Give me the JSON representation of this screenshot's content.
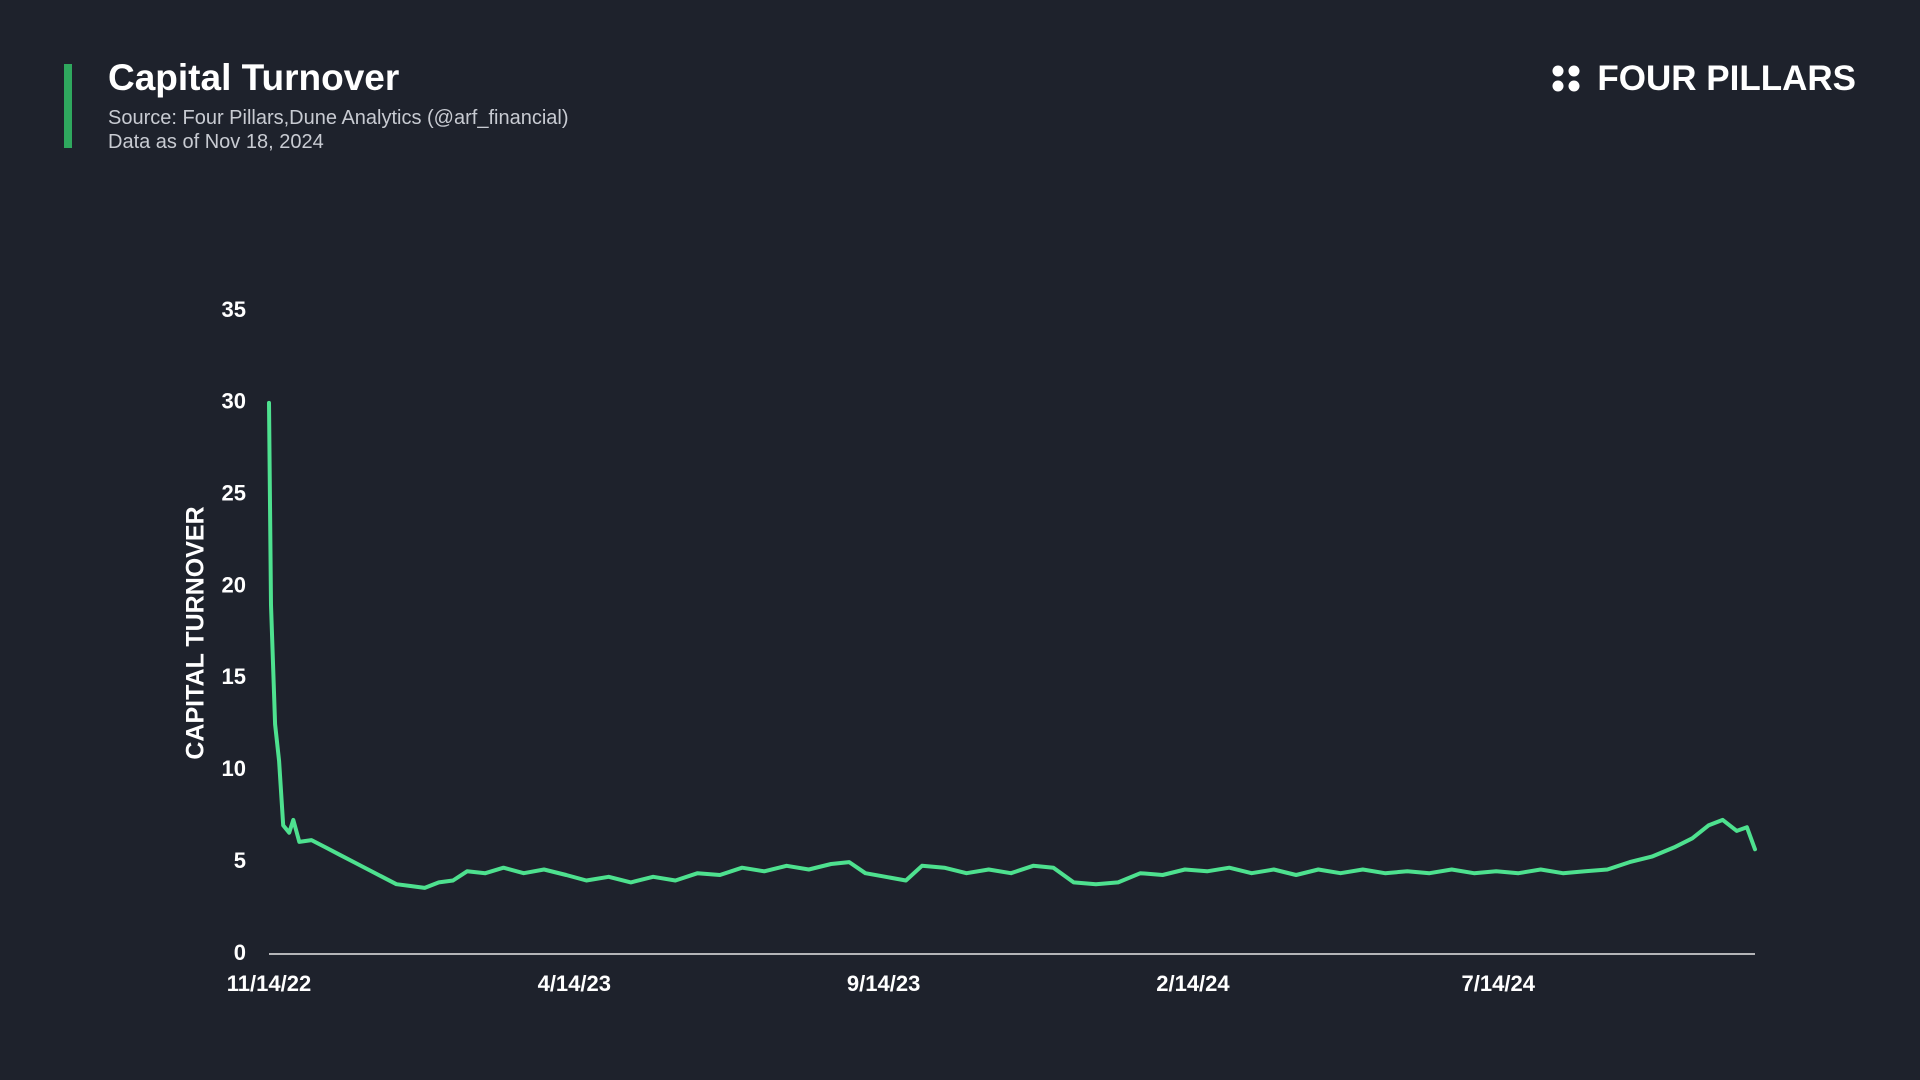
{
  "header": {
    "title": "Capital Turnover",
    "source": "Source: Four Pillars,Dune Analytics (@arf_financial)",
    "date_note": "Data as of Nov 18, 2024",
    "brand": "FOUR PILLARS"
  },
  "chart_data": {
    "type": "line",
    "y_label": "CAPITAL TURNOVER",
    "x": [
      "2022-11-14",
      "2022-11-15",
      "2022-11-17",
      "2022-11-19",
      "2022-11-21",
      "2022-11-24",
      "2022-11-26",
      "2022-11-29",
      "2022-12-05",
      "2022-12-12",
      "2022-12-19",
      "2022-12-26",
      "2023-01-02",
      "2023-01-09",
      "2023-01-16",
      "2023-01-23",
      "2023-01-30",
      "2023-02-06",
      "2023-02-13",
      "2023-02-20",
      "2023-03-01",
      "2023-03-10",
      "2023-03-20",
      "2023-03-30",
      "2023-04-10",
      "2023-04-20",
      "2023-05-01",
      "2023-05-12",
      "2023-05-23",
      "2023-06-03",
      "2023-06-14",
      "2023-06-25",
      "2023-07-06",
      "2023-07-17",
      "2023-07-28",
      "2023-08-08",
      "2023-08-19",
      "2023-08-28",
      "2023-09-05",
      "2023-09-15",
      "2023-09-25",
      "2023-10-03",
      "2023-10-14",
      "2023-10-25",
      "2023-11-05",
      "2023-11-16",
      "2023-11-27",
      "2023-12-07",
      "2023-12-17",
      "2023-12-28",
      "2024-01-08",
      "2024-01-19",
      "2024-01-30",
      "2024-02-10",
      "2024-02-21",
      "2024-03-03",
      "2024-03-14",
      "2024-03-25",
      "2024-04-05",
      "2024-04-16",
      "2024-04-27",
      "2024-05-08",
      "2024-05-19",
      "2024-05-30",
      "2024-06-10",
      "2024-06-21",
      "2024-07-02",
      "2024-07-13",
      "2024-07-24",
      "2024-08-04",
      "2024-08-15",
      "2024-08-26",
      "2024-09-06",
      "2024-09-17",
      "2024-09-28",
      "2024-10-09",
      "2024-10-18",
      "2024-10-26",
      "2024-11-02",
      "2024-11-09",
      "2024-11-14",
      "2024-11-18"
    ],
    "series": [
      {
        "name": "Capital Turnover",
        "color": "#4ee18f",
        "values": [
          30,
          19,
          12.5,
          10.5,
          7,
          6.6,
          7.3,
          6.1,
          6.2,
          5.8,
          5.4,
          5.0,
          4.6,
          4.2,
          3.8,
          3.7,
          3.6,
          3.9,
          4.0,
          4.5,
          4.4,
          4.7,
          4.4,
          4.6,
          4.3,
          4.0,
          4.2,
          3.9,
          4.2,
          4.0,
          4.4,
          4.3,
          4.7,
          4.5,
          4.8,
          4.6,
          4.9,
          5.0,
          4.4,
          4.2,
          4.0,
          4.8,
          4.7,
          4.4,
          4.6,
          4.4,
          4.8,
          4.7,
          3.9,
          3.8,
          3.9,
          4.4,
          4.3,
          4.6,
          4.5,
          4.7,
          4.4,
          4.6,
          4.3,
          4.6,
          4.4,
          4.6,
          4.4,
          4.5,
          4.4,
          4.6,
          4.4,
          4.5,
          4.4,
          4.6,
          4.4,
          4.5,
          4.6,
          5.0,
          5.3,
          5.8,
          6.3,
          7.0,
          7.3,
          6.7,
          6.9,
          5.7
        ]
      }
    ],
    "xlim": [
      "2022-11-14",
      "2024-11-18"
    ],
    "xticks": [
      {
        "value": "2022-11-14",
        "label": "11/14/22"
      },
      {
        "value": "2023-04-14",
        "label": "4/14/23"
      },
      {
        "value": "2023-09-14",
        "label": "9/14/23"
      },
      {
        "value": "2024-02-14",
        "label": "2/14/24"
      },
      {
        "value": "2024-07-14",
        "label": "7/14/24"
      }
    ],
    "ylim": [
      0,
      35
    ],
    "yticks": [
      0,
      5,
      10,
      15,
      20,
      25,
      30,
      35
    ],
    "grid": false
  }
}
